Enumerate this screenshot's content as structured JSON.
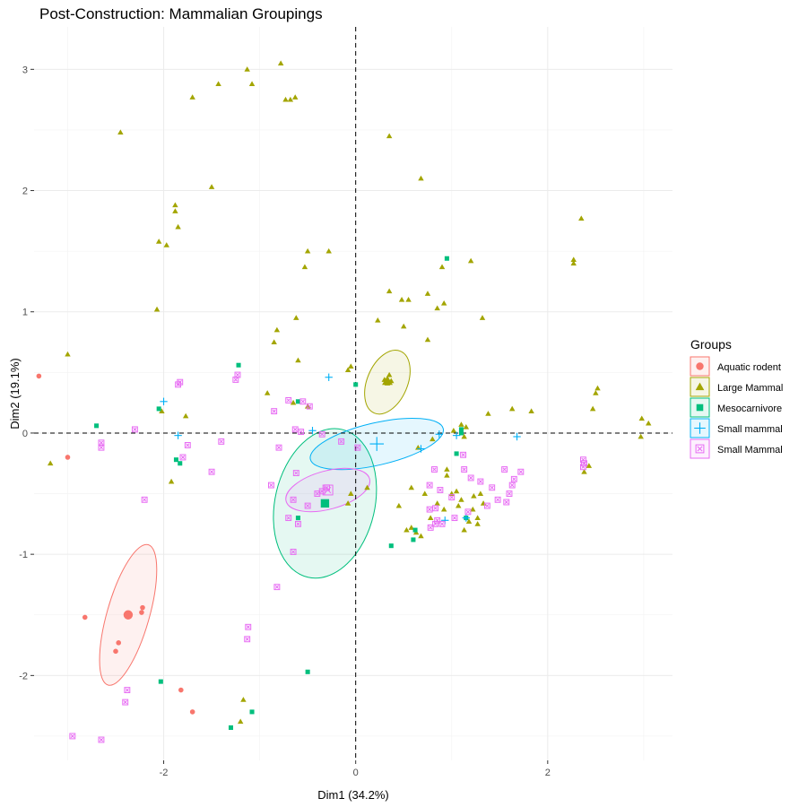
{
  "chart_data": {
    "type": "scatter",
    "title": "Post-Construction: Mammalian Groupings",
    "xlabel": "Dim1 (34.2%)",
    "ylabel": "Dim2 (19.1%)",
    "xlim": [
      -3.35,
      3.3
    ],
    "ylim": [
      -2.7,
      3.35
    ],
    "x_ticks": [
      -2,
      0,
      2
    ],
    "y_ticks": [
      -2,
      -1,
      0,
      1,
      2,
      3
    ],
    "grid": true,
    "reference_lines": {
      "x": 0,
      "y": 0,
      "style": "dashed"
    },
    "legend": {
      "title": "Groups",
      "position": "right"
    },
    "series": [
      {
        "name": "Aquatic rodent",
        "color": "#F8766D",
        "marker": "circle",
        "points": [
          [
            -3.3,
            0.47
          ],
          [
            -2.82,
            -1.52
          ],
          [
            -2.47,
            -1.73
          ],
          [
            -2.5,
            -1.8
          ],
          [
            -2.23,
            -1.48
          ],
          [
            -2.22,
            -1.44
          ],
          [
            -1.82,
            -2.12
          ],
          [
            -1.7,
            -2.3
          ],
          [
            -3.0,
            -0.2
          ]
        ],
        "centroid": [
          -2.37,
          -1.5
        ],
        "ellipse": {
          "cx": -2.37,
          "cy": -1.5,
          "rx": 0.76,
          "ry": 0.22,
          "angle_deg": -74
        }
      },
      {
        "name": "Large Mammal",
        "color": "#A3A500",
        "marker": "triangle",
        "points": [
          [
            -0.78,
            3.05
          ],
          [
            -1.13,
            3.0
          ],
          [
            -1.08,
            2.88
          ],
          [
            -1.43,
            2.88
          ],
          [
            -1.7,
            2.77
          ],
          [
            -0.73,
            2.75
          ],
          [
            -0.68,
            2.75
          ],
          [
            -0.63,
            2.77
          ],
          [
            0.35,
            2.45
          ],
          [
            -2.45,
            2.48
          ],
          [
            -1.5,
            2.03
          ],
          [
            0.68,
            2.1
          ],
          [
            -1.88,
            1.88
          ],
          [
            -1.88,
            1.83
          ],
          [
            -1.85,
            1.7
          ],
          [
            -2.05,
            1.58
          ],
          [
            -1.97,
            1.55
          ],
          [
            -0.5,
            1.5
          ],
          [
            -0.28,
            1.5
          ],
          [
            -0.53,
            1.37
          ],
          [
            2.35,
            1.77
          ],
          [
            2.27,
            1.43
          ],
          [
            2.27,
            1.4
          ],
          [
            1.2,
            1.42
          ],
          [
            0.9,
            1.37
          ],
          [
            0.35,
            1.17
          ],
          [
            0.48,
            1.1
          ],
          [
            0.55,
            1.1
          ],
          [
            0.75,
            1.15
          ],
          [
            0.92,
            1.07
          ],
          [
            0.85,
            1.03
          ],
          [
            -2.07,
            1.02
          ],
          [
            -0.62,
            0.95
          ],
          [
            -0.82,
            0.85
          ],
          [
            -0.85,
            0.75
          ],
          [
            0.23,
            0.93
          ],
          [
            0.5,
            0.88
          ],
          [
            1.32,
            0.95
          ],
          [
            0.75,
            0.77
          ],
          [
            -3.0,
            0.65
          ],
          [
            -0.05,
            0.55
          ],
          [
            -0.08,
            0.52
          ],
          [
            -0.6,
            0.6
          ],
          [
            0.35,
            0.48
          ],
          [
            0.3,
            0.44
          ],
          [
            0.33,
            0.41
          ],
          [
            0.37,
            0.43
          ],
          [
            -0.92,
            0.33
          ],
          [
            -0.65,
            0.25
          ],
          [
            -0.5,
            0.22
          ],
          [
            -2.02,
            0.18
          ],
          [
            -1.77,
            0.14
          ],
          [
            1.38,
            0.16
          ],
          [
            1.63,
            0.2
          ],
          [
            1.83,
            0.18
          ],
          [
            2.47,
            0.2
          ],
          [
            2.5,
            0.33
          ],
          [
            2.52,
            0.37
          ],
          [
            2.98,
            0.12
          ],
          [
            3.05,
            0.08
          ],
          [
            1.1,
            0.07
          ],
          [
            1.13,
            -0.03
          ],
          [
            1.15,
            0.05
          ],
          [
            1.02,
            0.02
          ],
          [
            2.97,
            -0.03
          ],
          [
            0.8,
            -0.05
          ],
          [
            0.65,
            -0.12
          ],
          [
            2.43,
            -0.27
          ],
          [
            2.38,
            -0.32
          ],
          [
            -3.18,
            -0.25
          ],
          [
            -1.92,
            -0.4
          ],
          [
            0.95,
            -0.35
          ],
          [
            0.58,
            -0.45
          ],
          [
            0.12,
            -0.45
          ],
          [
            1.05,
            -0.48
          ],
          [
            1.23,
            -0.52
          ],
          [
            0.85,
            -0.58
          ],
          [
            1.22,
            -0.63
          ],
          [
            1.33,
            -0.58
          ],
          [
            1.27,
            -0.7
          ],
          [
            1.27,
            -0.75
          ],
          [
            0.53,
            -0.8
          ],
          [
            0.63,
            -0.82
          ],
          [
            0.68,
            -0.85
          ],
          [
            0.92,
            -0.63
          ],
          [
            1.07,
            -0.6
          ],
          [
            0.78,
            -0.7
          ],
          [
            1.18,
            -0.73
          ],
          [
            1.13,
            -0.8
          ],
          [
            -0.05,
            -0.5
          ],
          [
            -0.08,
            -0.58
          ],
          [
            -1.17,
            -2.2
          ],
          [
            -1.2,
            -2.38
          ],
          [
            0.58,
            -0.78
          ],
          [
            1.0,
            -0.5
          ],
          [
            0.95,
            -0.3
          ],
          [
            0.72,
            -0.5
          ],
          [
            1.1,
            -0.55
          ],
          [
            1.3,
            -0.5
          ],
          [
            0.45,
            -0.6
          ]
        ],
        "centroid": [
          0.33,
          0.43
        ],
        "ellipse": {
          "cx": 0.33,
          "cy": 0.42,
          "rx": 0.35,
          "ry": 0.21,
          "angle_deg": -67
        }
      },
      {
        "name": "Mesocarnivore",
        "color": "#00BF7D",
        "marker": "square",
        "points": [
          [
            -2.7,
            0.06
          ],
          [
            -1.22,
            0.56
          ],
          [
            -2.05,
            0.2
          ],
          [
            -1.87,
            -0.22
          ],
          [
            -1.83,
            -0.25
          ],
          [
            0.95,
            1.44
          ],
          [
            1.05,
            -0.17
          ],
          [
            1.1,
            0.0
          ],
          [
            1.1,
            0.03
          ],
          [
            -0.6,
            0.26
          ],
          [
            0.62,
            -0.8
          ],
          [
            0.6,
            -0.88
          ],
          [
            0.37,
            -0.93
          ],
          [
            1.15,
            -0.7
          ],
          [
            -2.03,
            -2.05
          ],
          [
            -0.5,
            -1.97
          ],
          [
            -1.3,
            -2.43
          ],
          [
            -1.08,
            -2.3
          ],
          [
            -0.6,
            -0.7
          ],
          [
            0.0,
            0.4
          ]
        ],
        "centroid": [
          -0.32,
          -0.58
        ],
        "ellipse": {
          "cx": -0.32,
          "cy": -0.58,
          "rx": 0.79,
          "ry": 0.52,
          "angle_deg": -77
        }
      },
      {
        "name": "Small mammal",
        "color": "#00B0F6",
        "marker": "plus",
        "points": [
          [
            -2.0,
            0.26
          ],
          [
            -1.85,
            -0.02
          ],
          [
            -0.28,
            0.46
          ],
          [
            -0.45,
            0.02
          ],
          [
            0.68,
            -0.13
          ],
          [
            0.87,
            -0.01
          ],
          [
            1.05,
            -0.02
          ],
          [
            0.93,
            -0.72
          ],
          [
            1.15,
            -0.7
          ],
          [
            1.68,
            -0.03
          ]
        ],
        "centroid": [
          0.22,
          -0.09
        ],
        "ellipse": {
          "cx": 0.22,
          "cy": -0.09,
          "rx": 0.71,
          "ry": 0.22,
          "angle_deg": -13
        }
      },
      {
        "name": "Small Mammal",
        "color": "#E76BF3",
        "marker": "square-cross",
        "points": [
          [
            -1.83,
            0.42
          ],
          [
            -1.85,
            0.4
          ],
          [
            -1.23,
            0.48
          ],
          [
            -1.25,
            0.44
          ],
          [
            -2.3,
            0.03
          ],
          [
            -0.7,
            0.27
          ],
          [
            -0.55,
            0.26
          ],
          [
            -0.48,
            0.22
          ],
          [
            -0.85,
            0.18
          ],
          [
            -0.63,
            0.03
          ],
          [
            -0.57,
            0.01
          ],
          [
            -0.35,
            -0.01
          ],
          [
            -2.65,
            -0.08
          ],
          [
            -2.65,
            -0.12
          ],
          [
            -1.4,
            -0.07
          ],
          [
            -1.8,
            -0.2
          ],
          [
            -1.5,
            -0.32
          ],
          [
            -0.8,
            -0.12
          ],
          [
            -0.15,
            -0.07
          ],
          [
            0.02,
            -0.12
          ],
          [
            -1.75,
            -0.1
          ],
          [
            -0.62,
            -0.33
          ],
          [
            -0.88,
            -0.43
          ],
          [
            -2.2,
            -0.55
          ],
          [
            -0.65,
            -0.55
          ],
          [
            -0.7,
            -0.7
          ],
          [
            -0.6,
            -0.75
          ],
          [
            -0.65,
            -0.98
          ],
          [
            -0.82,
            -1.27
          ],
          [
            -1.12,
            -1.6
          ],
          [
            -1.13,
            -1.7
          ],
          [
            -2.38,
            -2.12
          ],
          [
            -2.4,
            -2.22
          ],
          [
            -2.95,
            -2.5
          ],
          [
            -2.65,
            -2.53
          ],
          [
            0.82,
            -0.3
          ],
          [
            0.77,
            -0.43
          ],
          [
            0.88,
            -0.47
          ],
          [
            1.0,
            -0.53
          ],
          [
            1.13,
            -0.3
          ],
          [
            1.12,
            -0.18
          ],
          [
            1.2,
            -0.37
          ],
          [
            1.3,
            -0.4
          ],
          [
            1.42,
            -0.45
          ],
          [
            1.48,
            -0.55
          ],
          [
            1.6,
            -0.5
          ],
          [
            1.63,
            -0.43
          ],
          [
            1.57,
            -0.57
          ],
          [
            1.65,
            -0.38
          ],
          [
            1.72,
            -0.32
          ],
          [
            1.55,
            -0.3
          ],
          [
            0.77,
            -0.63
          ],
          [
            0.83,
            -0.62
          ],
          [
            0.85,
            -0.72
          ],
          [
            0.9,
            -0.75
          ],
          [
            0.83,
            -0.75
          ],
          [
            1.03,
            -0.7
          ],
          [
            1.17,
            -0.65
          ],
          [
            1.37,
            -0.6
          ],
          [
            0.78,
            -0.78
          ],
          [
            2.37,
            -0.22
          ],
          [
            2.38,
            -0.25
          ],
          [
            2.37,
            -0.28
          ],
          [
            -0.35,
            -0.48
          ],
          [
            -0.3,
            -0.45
          ],
          [
            -0.4,
            -0.5
          ],
          [
            -0.5,
            -0.6
          ]
        ],
        "centroid": [
          -0.29,
          -0.47
        ],
        "ellipse": {
          "cx": -0.29,
          "cy": -0.47,
          "rx": 0.45,
          "ry": 0.2,
          "angle_deg": -15
        }
      }
    ]
  }
}
